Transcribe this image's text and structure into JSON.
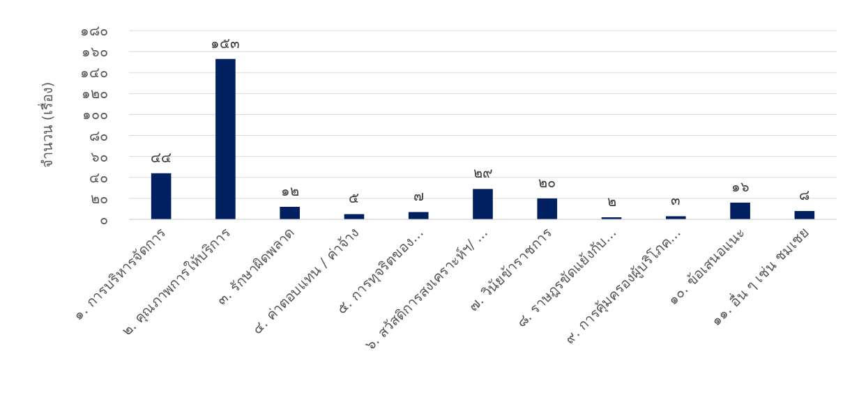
{
  "chart_data": {
    "type": "bar",
    "ylabel": "จำนวน (เรื่อง)",
    "categories": [
      "๑. การบริหารจัดการ",
      "๒. คุณภาพการให้บริการ",
      "๓. รักษาผิดพลาด",
      "๔. ค่าตอบแทน / ค่าจ้าง",
      "๕. การทุจริตของ...",
      "๖. สวัสดิการสงเคราะห์ฯ/ ...",
      "๗. วินัยข้าราชการ",
      "๘. ราษฎรขัดแย้งกับ...",
      "๙. การคุ้มครองผู้บริโภค...",
      "๑๐. ข้อเสนอแนะ",
      "๑๑. อื่น ๆ เช่น ชมเชย"
    ],
    "values": [
      44,
      153,
      12,
      5,
      7,
      29,
      20,
      2,
      3,
      16,
      8
    ],
    "value_labels": [
      "๔๔",
      "๑๕๓",
      "๑๒",
      "๕",
      "๗",
      "๒๙",
      "๒๐",
      "๒",
      "๓",
      "๑๖",
      "๘"
    ],
    "color": "#002060",
    "ylim": [
      0,
      180
    ],
    "yticks": [
      {
        "value": 0,
        "label": "๐"
      },
      {
        "value": 20,
        "label": "๒๐"
      },
      {
        "value": 40,
        "label": "๔๐"
      },
      {
        "value": 60,
        "label": "๖๐"
      },
      {
        "value": 80,
        "label": "๘๐"
      },
      {
        "value": 100,
        "label": "๑๐๐"
      },
      {
        "value": 120,
        "label": "๑๒๐"
      },
      {
        "value": 140,
        "label": "๑๔๐"
      },
      {
        "value": 160,
        "label": "๑๖๐"
      },
      {
        "value": 180,
        "label": "๑๘๐"
      }
    ],
    "grid": "y"
  }
}
